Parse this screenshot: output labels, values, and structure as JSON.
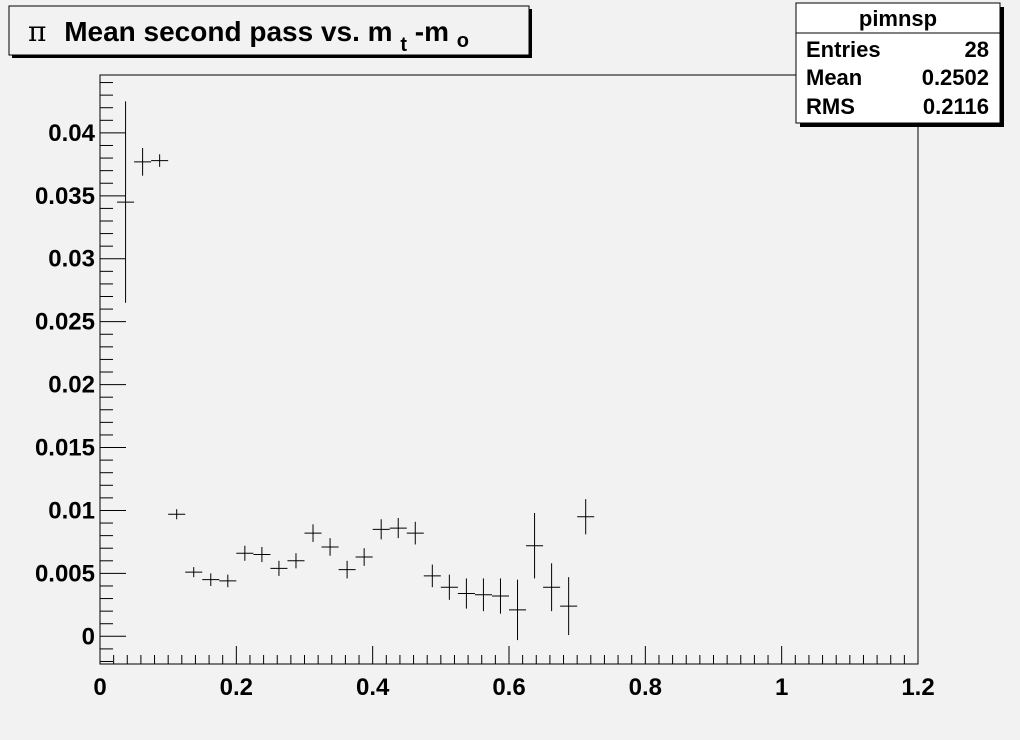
{
  "chart_data": {
    "type": "scatter",
    "title": {
      "symbol": "π",
      "main": "Mean second pass vs. m",
      "sub1": "t",
      "dash": "-m",
      "sub2": "o"
    },
    "stats_box": {
      "name": "pimnsp",
      "rows": [
        {
          "label": "Entries",
          "value": "28"
        },
        {
          "label": "Mean",
          "value": "0.2502"
        },
        {
          "label": "RMS",
          "value": "0.2116"
        }
      ]
    },
    "xlim": [
      0,
      1.2
    ],
    "ylim": [
      -0.0022,
      0.0446
    ],
    "x_ticks": [
      {
        "v": 0,
        "label": "0"
      },
      {
        "v": 0.2,
        "label": "0.2"
      },
      {
        "v": 0.4,
        "label": "0.4"
      },
      {
        "v": 0.6,
        "label": "0.6"
      },
      {
        "v": 0.8,
        "label": "0.8"
      },
      {
        "v": 1.0,
        "label": "1"
      },
      {
        "v": 1.2,
        "label": "1.2"
      }
    ],
    "y_ticks": [
      {
        "v": 0,
        "label": "0"
      },
      {
        "v": 0.005,
        "label": "0.005"
      },
      {
        "v": 0.01,
        "label": "0.01"
      },
      {
        "v": 0.015,
        "label": "0.015"
      },
      {
        "v": 0.02,
        "label": "0.02"
      },
      {
        "v": 0.025,
        "label": "0.025"
      },
      {
        "v": 0.03,
        "label": "0.03"
      },
      {
        "v": 0.035,
        "label": "0.035"
      },
      {
        "v": 0.04,
        "label": "0.04"
      }
    ],
    "x_bin_width": 0.025,
    "points": [
      {
        "x": 0.0375,
        "y": 0.0345,
        "err": 0.008
      },
      {
        "x": 0.0625,
        "y": 0.0377,
        "err": 0.0011
      },
      {
        "x": 0.0875,
        "y": 0.0378,
        "err": 0.0005
      },
      {
        "x": 0.1125,
        "y": 0.0097,
        "err": 0.0004
      },
      {
        "x": 0.1375,
        "y": 0.0051,
        "err": 0.0004
      },
      {
        "x": 0.1625,
        "y": 0.0045,
        "err": 0.0005
      },
      {
        "x": 0.1875,
        "y": 0.0044,
        "err": 0.0005
      },
      {
        "x": 0.2125,
        "y": 0.0066,
        "err": 0.0006
      },
      {
        "x": 0.2375,
        "y": 0.0065,
        "err": 0.0006
      },
      {
        "x": 0.2625,
        "y": 0.0054,
        "err": 0.0006
      },
      {
        "x": 0.2875,
        "y": 0.006,
        "err": 0.0006
      },
      {
        "x": 0.3125,
        "y": 0.0082,
        "err": 0.0007
      },
      {
        "x": 0.3375,
        "y": 0.0071,
        "err": 0.0007
      },
      {
        "x": 0.3625,
        "y": 0.0053,
        "err": 0.0007
      },
      {
        "x": 0.3875,
        "y": 0.0063,
        "err": 0.0007
      },
      {
        "x": 0.4125,
        "y": 0.0085,
        "err": 0.0008
      },
      {
        "x": 0.4375,
        "y": 0.0086,
        "err": 0.0008
      },
      {
        "x": 0.4625,
        "y": 0.0082,
        "err": 0.0009
      },
      {
        "x": 0.4875,
        "y": 0.0048,
        "err": 0.0009
      },
      {
        "x": 0.5125,
        "y": 0.0039,
        "err": 0.001
      },
      {
        "x": 0.5375,
        "y": 0.0034,
        "err": 0.0012
      },
      {
        "x": 0.5625,
        "y": 0.0033,
        "err": 0.0013
      },
      {
        "x": 0.5875,
        "y": 0.0032,
        "err": 0.0014
      },
      {
        "x": 0.6125,
        "y": 0.0021,
        "err": 0.0024
      },
      {
        "x": 0.6375,
        "y": 0.0072,
        "err": 0.0026
      },
      {
        "x": 0.6625,
        "y": 0.0039,
        "err": 0.0019
      },
      {
        "x": 0.6875,
        "y": 0.0024,
        "err": 0.0023
      },
      {
        "x": 0.7125,
        "y": 0.0095,
        "err": 0.0014
      }
    ],
    "grid": false,
    "legend": "top-right"
  }
}
